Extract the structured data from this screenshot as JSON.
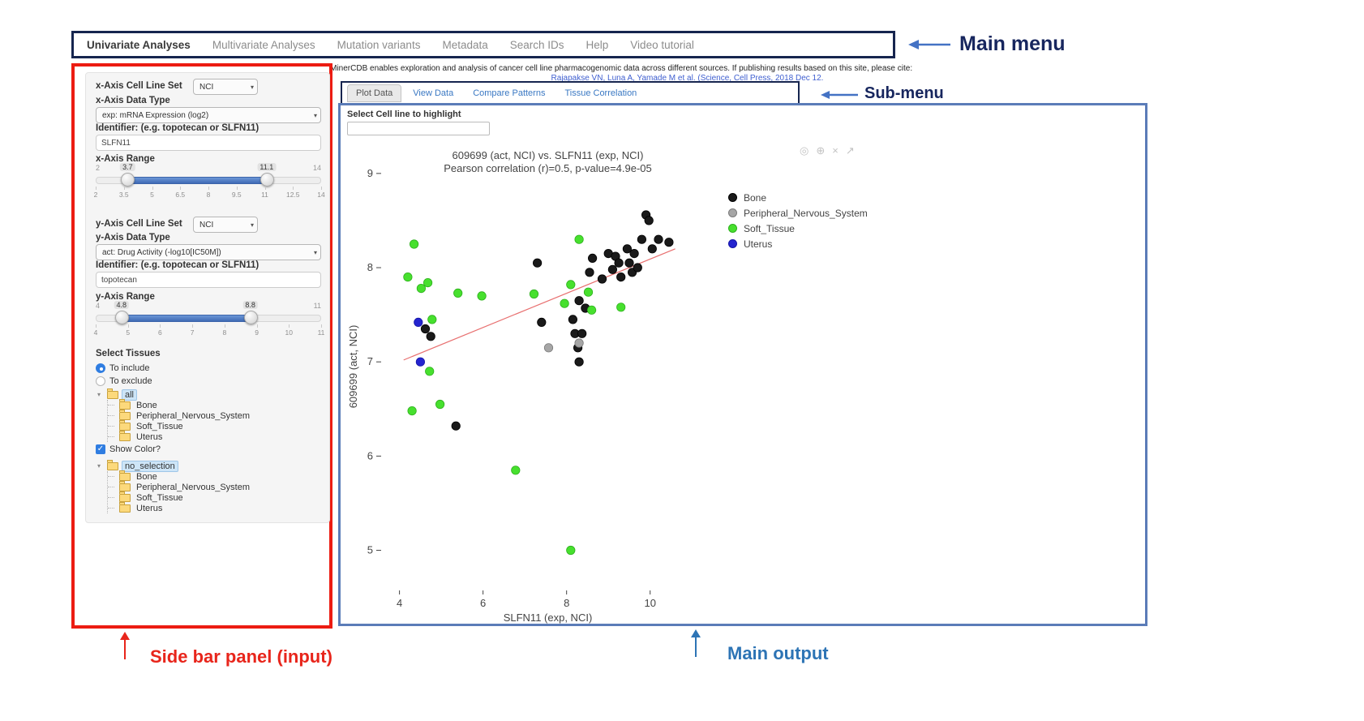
{
  "colors": {
    "box_navy": "#16254f",
    "box_red": "#ec1c12",
    "box_blue": "#5b7cb8",
    "arrow_blue": "#4472c4",
    "annotation_red": "#e8251b",
    "annotation_blue": "#2d74b5",
    "slider_blue": "#4a77c0",
    "link_blue": "#3f5fd0",
    "tab_link_blue": "#3a78c3"
  },
  "annotations": {
    "main_menu": "Main menu",
    "submenu": "Sub-menu",
    "sidebar": "Side bar panel (input)",
    "main_output": "Main output"
  },
  "main_menu": {
    "items": [
      {
        "label": "Univariate Analyses",
        "active": true
      },
      {
        "label": "Multivariate Analyses",
        "active": false
      },
      {
        "label": "Mutation variants",
        "active": false
      },
      {
        "label": "Metadata",
        "active": false
      },
      {
        "label": "Search IDs",
        "active": false
      },
      {
        "label": "Help",
        "active": false
      },
      {
        "label": "Video tutorial",
        "active": false
      }
    ]
  },
  "citation": {
    "text": "CellMinerCDB enables exploration and analysis of cancer cell line pharmacogenomic data across different sources. If publishing results based on this site, please cite:",
    "link": "Rajapakse VN, Luna A, Yamade M et al. (Science, Cell Press, 2018 Dec 12."
  },
  "sidebar": {
    "x_axis": {
      "cell_line_set_label": "x-Axis Cell Line Set",
      "cell_line_set_value": "NCI",
      "data_type_label": "x-Axis Data Type",
      "data_type_value": "exp: mRNA Expression (log2)",
      "identifier_label": "Identifier: (e.g. topotecan or SLFN11)",
      "identifier_value": "SLFN11",
      "range_label": "x-Axis Range",
      "range": {
        "min": 2,
        "max": 14,
        "from": 3.7,
        "to": 11.1,
        "ticks": [
          2,
          3.5,
          5,
          6.5,
          8,
          9.5,
          11,
          12.5,
          14
        ]
      }
    },
    "y_axis": {
      "cell_line_set_label": "y-Axis Cell Line Set",
      "cell_line_set_value": "NCI",
      "data_type_label": "y-Axis Data Type",
      "data_type_value": "act: Drug Activity (-log10[IC50M])",
      "identifier_label": "Identifier: (e.g. topotecan or SLFN11)",
      "identifier_value": "topotecan",
      "range_label": "y-Axis Range",
      "range": {
        "min": 4,
        "max": 11,
        "from": 4.8,
        "to": 8.8,
        "ticks": [
          4,
          5,
          6,
          7,
          8,
          9,
          10,
          11
        ]
      }
    },
    "tissues": {
      "label": "Select Tissues",
      "options": [
        {
          "label": "To include",
          "selected": true
        },
        {
          "label": "To exclude",
          "selected": false
        }
      ],
      "include_tree": {
        "root": "all",
        "children": [
          "Bone",
          "Peripheral_Nervous_System",
          "Soft_Tissue",
          "Uterus"
        ]
      },
      "show_color_label": "Show Color?",
      "show_color_checked": true,
      "color_tree": {
        "root": "no_selection",
        "children": [
          "Bone",
          "Peripheral_Nervous_System",
          "Soft_Tissue",
          "Uterus"
        ]
      }
    }
  },
  "submenu": {
    "tabs": [
      {
        "label": "Plot Data",
        "active": true
      },
      {
        "label": "View Data",
        "active": false
      },
      {
        "label": "Compare Patterns",
        "active": false
      },
      {
        "label": "Tissue Correlation",
        "active": false
      }
    ]
  },
  "main_output": {
    "highlight_label": "Select Cell line to highlight",
    "highlight_value": "",
    "modebar_icons": [
      "camera-icon",
      "zoom-in-icon",
      "close-icon",
      "diag-arrow-icon"
    ]
  },
  "chart_data": {
    "type": "scatter",
    "title": "609699 (act, NCI) vs. SLFN11 (exp, NCI)",
    "subtitle": "Pearson correlation (r)=0.5, p-value=4.9e-05",
    "xlabel": "SLFN11 (exp, NCI)",
    "ylabel": "609699 (act, NCI)",
    "xlim": [
      3.6,
      11.5
    ],
    "ylim": [
      4.6,
      9.3
    ],
    "xticks": [
      4,
      6,
      8,
      10
    ],
    "yticks": [
      5,
      6,
      7,
      8,
      9
    ],
    "grid": false,
    "legend_position": "right",
    "regression_line": {
      "x1": 4.1,
      "y1": 7.02,
      "x2": 10.6,
      "y2": 8.2,
      "color": "#e87070"
    },
    "series": [
      {
        "name": "Bone",
        "color": "#1a1a1a",
        "stroke": "#000000",
        "points": [
          [
            4.62,
            7.35
          ],
          [
            4.75,
            7.27
          ],
          [
            5.35,
            6.32
          ],
          [
            7.4,
            7.42
          ],
          [
            7.3,
            8.05
          ],
          [
            8.15,
            7.45
          ],
          [
            8.2,
            7.3
          ],
          [
            8.27,
            7.15
          ],
          [
            8.3,
            7.0
          ],
          [
            8.37,
            7.3
          ],
          [
            8.45,
            7.57
          ],
          [
            8.3,
            7.65
          ],
          [
            8.55,
            7.95
          ],
          [
            8.62,
            8.1
          ],
          [
            8.85,
            7.88
          ],
          [
            9.0,
            8.15
          ],
          [
            9.1,
            7.98
          ],
          [
            9.17,
            8.12
          ],
          [
            9.25,
            8.05
          ],
          [
            9.3,
            7.9
          ],
          [
            9.45,
            8.2
          ],
          [
            9.5,
            8.05
          ],
          [
            9.57,
            7.95
          ],
          [
            9.62,
            8.15
          ],
          [
            9.7,
            8.0
          ],
          [
            9.8,
            8.3
          ],
          [
            9.9,
            8.56
          ],
          [
            9.97,
            8.5
          ],
          [
            10.05,
            8.2
          ],
          [
            10.2,
            8.3
          ],
          [
            10.45,
            8.27
          ]
        ]
      },
      {
        "name": "Peripheral_Nervous_System",
        "color": "#a6a6a6",
        "stroke": "#7a7a7a",
        "points": [
          [
            7.57,
            7.15
          ],
          [
            8.3,
            7.2
          ]
        ]
      },
      {
        "name": "Soft_Tissue",
        "color": "#47e02e",
        "stroke": "#2db01c",
        "points": [
          [
            4.35,
            8.25
          ],
          [
            4.2,
            7.9
          ],
          [
            4.52,
            7.78
          ],
          [
            4.68,
            7.84
          ],
          [
            5.4,
            7.73
          ],
          [
            5.97,
            7.7
          ],
          [
            4.78,
            7.45
          ],
          [
            4.72,
            6.9
          ],
          [
            4.3,
            6.48
          ],
          [
            4.97,
            6.55
          ],
          [
            6.78,
            5.85
          ],
          [
            8.1,
            5.0
          ],
          [
            7.22,
            7.72
          ],
          [
            7.95,
            7.62
          ],
          [
            8.1,
            7.82
          ],
          [
            8.3,
            8.3
          ],
          [
            8.52,
            7.74
          ],
          [
            8.6,
            7.55
          ],
          [
            9.3,
            7.58
          ]
        ]
      },
      {
        "name": "Uterus",
        "color": "#2424cf",
        "stroke": "#1515a6",
        "points": [
          [
            4.45,
            7.42
          ],
          [
            4.5,
            7.0
          ]
        ]
      }
    ]
  }
}
